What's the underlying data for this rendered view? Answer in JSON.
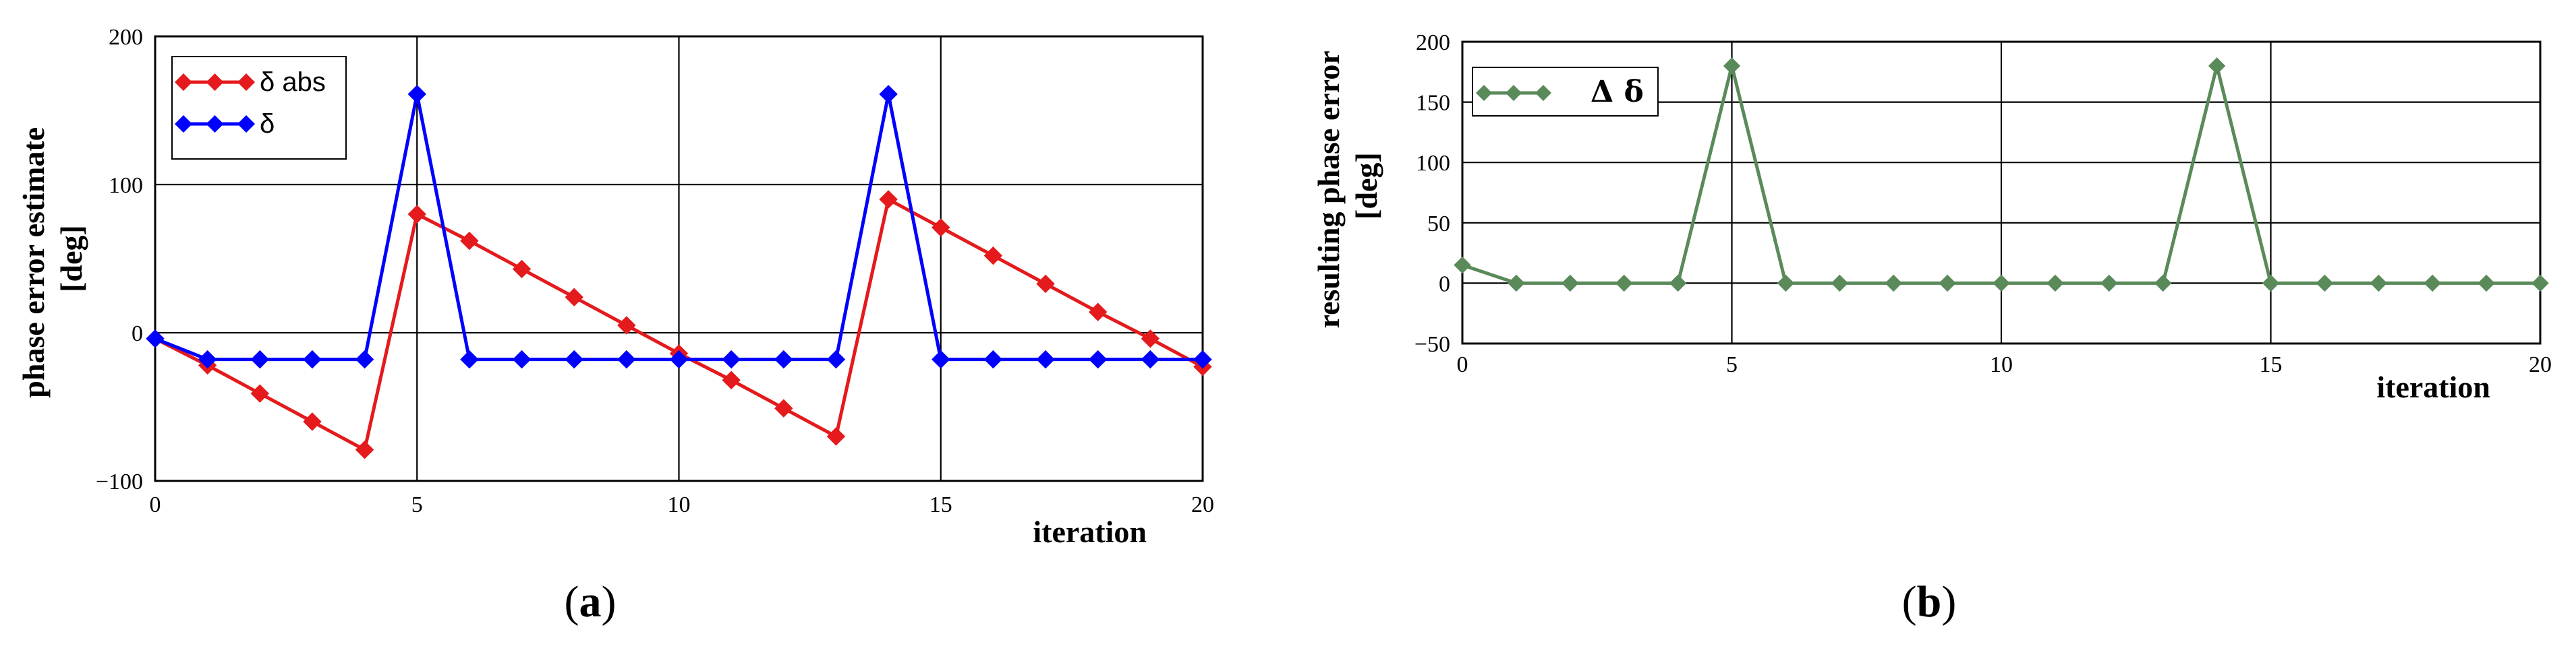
{
  "chart_data": [
    {
      "type": "line",
      "panel_label": "a",
      "ylabel": "phase error estimate\n[deg]",
      "xlabel": "iteration",
      "xlim": [
        0,
        20
      ],
      "ylim": [
        -100,
        200
      ],
      "xticks": [
        0,
        5,
        10,
        15,
        20
      ],
      "yticks": [
        -100,
        0,
        100,
        200
      ],
      "grid": true,
      "legend_position": "top-left",
      "series": [
        {
          "name": "δ abs",
          "color": "#e41a1c",
          "marker": "diamond",
          "x": [
            0,
            1,
            2,
            3,
            4,
            5,
            6,
            7,
            8,
            9,
            10,
            11,
            12,
            13,
            14,
            15,
            16,
            17,
            18,
            19,
            20
          ],
          "values": [
            -4,
            -22,
            -41,
            -60,
            -79,
            80,
            62,
            43,
            24,
            5,
            -14,
            -32,
            -51,
            -70,
            90,
            71,
            52,
            33,
            14,
            -4,
            -23
          ]
        },
        {
          "name": "δ",
          "color": "#0000ff",
          "marker": "diamond",
          "x": [
            0,
            1,
            2,
            3,
            4,
            5,
            6,
            7,
            8,
            9,
            10,
            11,
            12,
            13,
            14,
            15,
            16,
            17,
            18,
            19,
            20
          ],
          "values": [
            -4,
            -18,
            -18,
            -18,
            -18,
            161,
            -18,
            -18,
            -18,
            -18,
            -18,
            -18,
            -18,
            -18,
            161,
            -18,
            -18,
            -18,
            -18,
            -18,
            -18
          ]
        }
      ]
    },
    {
      "type": "line",
      "panel_label": "b",
      "ylabel": "resulting phase error\n[deg]",
      "xlabel": "iteration",
      "xlim": [
        0,
        20
      ],
      "ylim": [
        -50,
        200
      ],
      "xticks": [
        0,
        5,
        10,
        15,
        20
      ],
      "yticks": [
        -50,
        0,
        50,
        100,
        150,
        200
      ],
      "grid": true,
      "legend_position": "top-left",
      "series": [
        {
          "name": "Δ δ",
          "color": "#5a8a5a",
          "marker": "diamond",
          "x": [
            0,
            1,
            2,
            3,
            4,
            5,
            6,
            7,
            8,
            9,
            10,
            11,
            12,
            13,
            14,
            15,
            16,
            17,
            18,
            19,
            20
          ],
          "values": [
            15,
            0,
            0,
            0,
            0,
            180,
            0,
            0,
            0,
            0,
            0,
            0,
            0,
            0,
            180,
            0,
            0,
            0,
            0,
            0,
            0
          ]
        }
      ]
    }
  ]
}
